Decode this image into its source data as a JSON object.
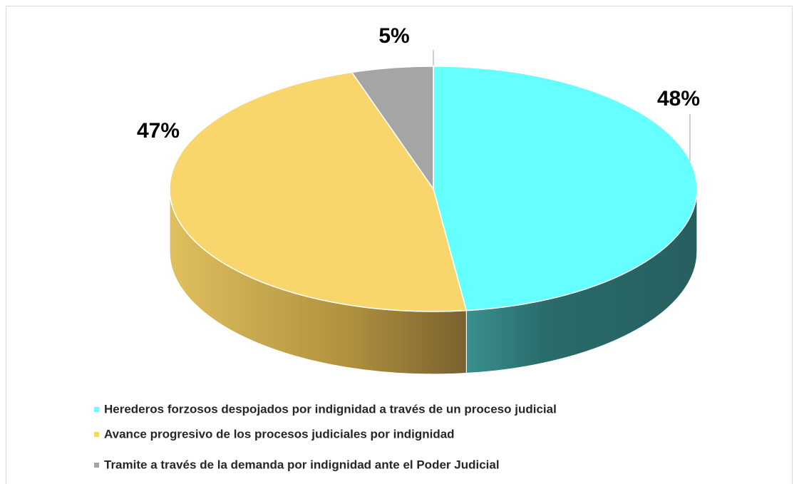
{
  "chart_data": {
    "type": "pie",
    "categories": [
      "Herederos forzosos despojados por indignidad a través de un proceso judicial",
      "Avance progresivo de los procesos judiciales por indignidad",
      "Tramite a través de la demanda por indignidad ante el Poder Judicial"
    ],
    "values": [
      48,
      47,
      5
    ],
    "value_labels": [
      "48%",
      "47%",
      "5%"
    ],
    "colors": [
      "#66ffff",
      "#f9d66b",
      "#a5a5a5"
    ],
    "legend": "bottom"
  }
}
